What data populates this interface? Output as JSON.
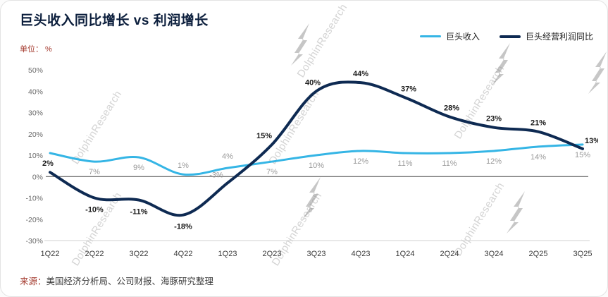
{
  "header": {
    "title": "巨头收入同比增长 vs 利润增长",
    "unit_label": "单位： %"
  },
  "legend": [
    {
      "label": "巨头收入",
      "color": "#35b5e5"
    },
    {
      "label": "巨头经营利润同比",
      "color": "#0e2a52"
    }
  ],
  "watermark": {
    "text": "DolphinResearch"
  },
  "footer": {
    "source_prefix": "来源：",
    "source_text": "美国经济分析局、公司财报、海豚研究整理"
  },
  "chart_data": {
    "type": "line",
    "title": "巨头收入同比增长 vs 利润增长",
    "xlabel": "",
    "ylabel": "%",
    "ylim": [
      -30,
      50
    ],
    "ytick_step": 10,
    "grid": false,
    "legend_position": "top-right",
    "categories": [
      "1Q22",
      "2Q22",
      "3Q22",
      "4Q22",
      "1Q23",
      "2Q23",
      "3Q23",
      "4Q23",
      "1Q24",
      "2Q24",
      "3Q24",
      "2Q25",
      "3Q25"
    ],
    "series": [
      {
        "name": "巨头收入",
        "color": "#35b5e5",
        "width": 3,
        "label_color": "#9a9a9a",
        "label_bold": false,
        "values": [
          11,
          7,
          9,
          1,
          4,
          7,
          10,
          12,
          11,
          11,
          12,
          14,
          15
        ],
        "labels": [
          "",
          "7%",
          "9%",
          "1%",
          "4%",
          "7%",
          "10%",
          "12%",
          "11%",
          "11%",
          "12%",
          "14%",
          "15%"
        ]
      },
      {
        "name": "巨头经营利润同比",
        "color": "#0e2a52",
        "width": 4,
        "label_color": "#1a1a1a",
        "label_bold": true,
        "values": [
          2,
          -10,
          -11,
          -18,
          -3,
          15,
          40,
          44,
          37,
          28,
          23,
          21,
          13
        ],
        "labels": [
          "2%",
          "-10%",
          "-11%",
          "-18%",
          "-3%",
          "15%",
          "40%",
          "44%",
          "37%",
          "28%",
          "23%",
          "21%",
          "13%"
        ]
      }
    ]
  }
}
